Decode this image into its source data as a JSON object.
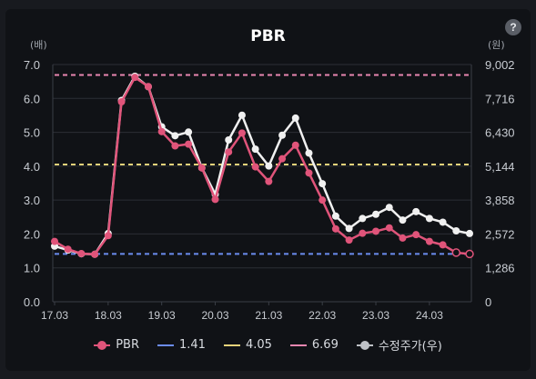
{
  "title": "PBR",
  "help_label": "?",
  "units": {
    "left": "(배)",
    "right": "(원)"
  },
  "colors": {
    "pbr": "#e0547a",
    "line_141": "#6b8cf0",
    "line_405": "#e6d27a",
    "line_669": "#e986b0",
    "price": "#f0f0f0",
    "grid": "#2b2e35",
    "axis_text": "#c8ccd2"
  },
  "legend": [
    {
      "label": "PBR",
      "color": "#e0547a",
      "kind": "dot"
    },
    {
      "label": "1.41",
      "color": "#6b8cf0",
      "kind": "line"
    },
    {
      "label": "4.05",
      "color": "#e6d27a",
      "kind": "line"
    },
    {
      "label": "6.69",
      "color": "#e986b0",
      "kind": "line"
    },
    {
      "label": "수정주가(우)",
      "color": "#bfc2c7",
      "kind": "dot"
    }
  ],
  "chart_data": {
    "type": "line",
    "title": "PBR",
    "x_ticks": [
      "17.03",
      "18.03",
      "19.03",
      "20.03",
      "21.03",
      "22.03",
      "23.03",
      "24.03"
    ],
    "y_left": {
      "unit": "(배)",
      "range": [
        0,
        7
      ],
      "ticks": [
        "0.0",
        "1.0",
        "2.0",
        "3.0",
        "4.0",
        "5.0",
        "6.0",
        "7.0"
      ]
    },
    "y_right": {
      "unit": "(원)",
      "range": [
        0,
        9002
      ],
      "ticks": [
        "0",
        "1,286",
        "2,572",
        "3,858",
        "5,144",
        "6,430",
        "7,716",
        "9,002"
      ]
    },
    "x": [
      "17.03",
      "17.06",
      "17.09",
      "17.12",
      "18.03",
      "18.06",
      "18.09",
      "18.12",
      "19.03",
      "19.06",
      "19.09",
      "19.12",
      "20.03",
      "20.06",
      "20.09",
      "20.12",
      "21.03",
      "21.06",
      "21.09",
      "21.12",
      "22.03",
      "22.06",
      "22.09",
      "22.12",
      "23.03",
      "23.06",
      "23.09",
      "23.12",
      "24.03",
      "24.06",
      "24.09",
      "24.12"
    ],
    "reference_lines": [
      1.41,
      4.05,
      6.69
    ],
    "series": [
      {
        "name": "PBR",
        "axis": "left",
        "values": [
          1.78,
          1.55,
          1.42,
          1.4,
          1.95,
          5.9,
          6.62,
          6.35,
          5.02,
          4.6,
          4.65,
          3.95,
          3.02,
          4.42,
          4.98,
          3.98,
          3.55,
          4.22,
          4.62,
          3.8,
          3.0,
          2.15,
          1.82,
          2.02,
          2.08,
          2.18,
          1.88,
          1.98,
          1.78,
          1.68,
          1.45,
          1.41
        ]
      },
      {
        "name": "수정주가(우)",
        "axis": "right",
        "values": [
          2110,
          1960,
          1820,
          1800,
          2590,
          7640,
          8560,
          8160,
          6640,
          6300,
          6440,
          5080,
          4080,
          6140,
          7080,
          5790,
          5150,
          6320,
          6970,
          5640,
          4480,
          3250,
          2780,
          3160,
          3320,
          3580,
          3100,
          3420,
          3160,
          3020,
          2690,
          2590
        ]
      }
    ]
  }
}
